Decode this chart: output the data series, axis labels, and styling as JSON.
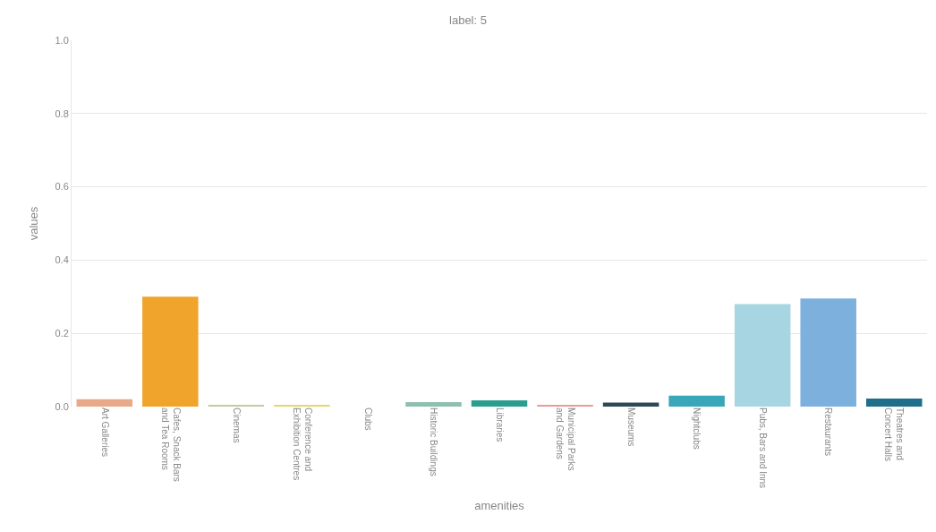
{
  "chart_data": {
    "type": "bar",
    "title": "label: 5",
    "xlabel": "amenities",
    "ylabel": "values",
    "categories": [
      "Art Galleries",
      "Cafes, Snack Bars\nand Tea Rooms",
      "Cinemas",
      "Conference and\nExhibition Centres",
      "Clubs",
      "Historic Buildings",
      "Libraries",
      "Municipal Parks\nand Gardens",
      "Museums",
      "Nightclubs",
      "Pubs, Bars and Inns",
      "Restaurants",
      "Theatres and\nConcert Halls"
    ],
    "values": [
      0.02,
      0.3,
      0.003,
      0.005,
      0.0,
      0.012,
      0.017,
      0.004,
      0.011,
      0.03,
      0.28,
      0.295,
      0.022
    ],
    "colors": [
      "#e8a88a",
      "#f0a42c",
      "#c9c9a0",
      "#e4d86a",
      "#d0d0d0",
      "#8fbfae",
      "#2a9d8f",
      "#e89a9a",
      "#2f4858",
      "#3aa6b9",
      "#a8d5e2",
      "#7eb0de",
      "#1f6f8b"
    ],
    "ylim": [
      0,
      1.0
    ],
    "yticks": [
      {
        "value": 0,
        "label": "0.0"
      },
      {
        "value": 0.2,
        "label": "0.2"
      },
      {
        "value": 0.4,
        "label": "0.4"
      },
      {
        "value": 0.6,
        "label": "0.6"
      },
      {
        "value": 0.8,
        "label": "0.8"
      },
      {
        "value": 1.0,
        "label": "1.0"
      }
    ],
    "grid": "y"
  }
}
